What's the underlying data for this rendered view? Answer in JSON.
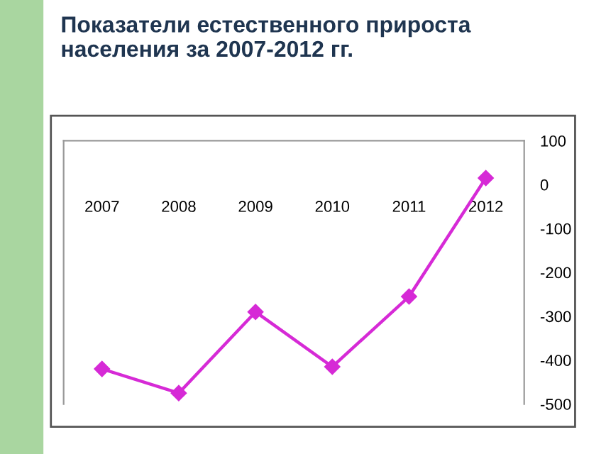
{
  "chart_data": {
    "type": "line",
    "title": "Показатели естественного прироста\nнаселения за 2007-2012 гг.",
    "categories": [
      "2007",
      "2008",
      "2009",
      "2010",
      "2011",
      "2012"
    ],
    "series": [
      {
        "color": "#d62ad6",
        "values": [
          -420,
          -475,
          -290,
          -415,
          -255,
          15
        ]
      }
    ],
    "ylim": [
      -500,
      100
    ],
    "yticks": [
      -500,
      -400,
      -300,
      -200,
      -100,
      0,
      100
    ],
    "marker": "diamond",
    "line_style": "solid",
    "grid": false,
    "legend": false
  }
}
